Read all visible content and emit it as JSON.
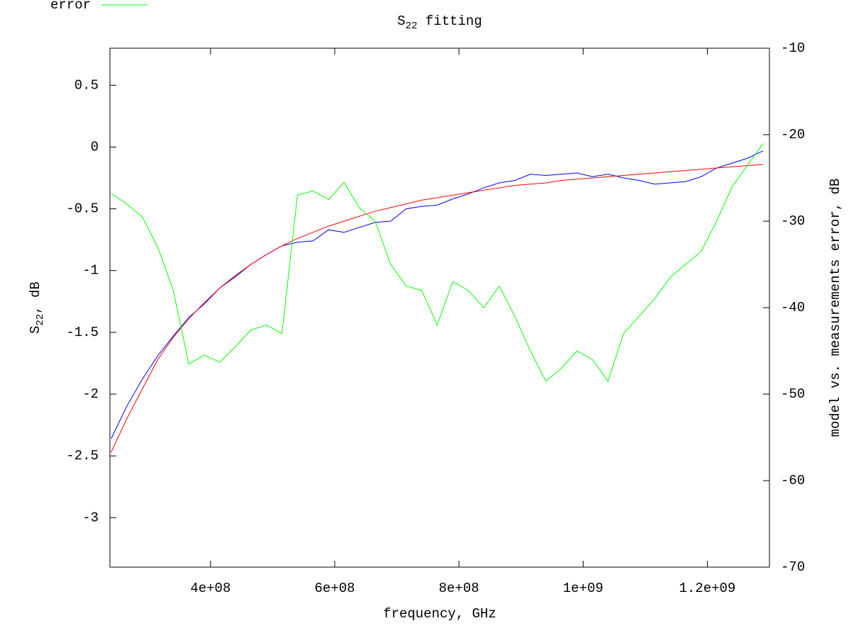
{
  "chart_data": {
    "type": "line",
    "title": {
      "base": "S",
      "sub": "22",
      "rest": " fitting"
    },
    "xlabel": "frequency, GHz",
    "ylabel": {
      "base": "S",
      "sub": "22",
      "rest": ", dB"
    },
    "y2label": "model vs. measurements error, dB",
    "legend": "top-left",
    "x": [
      240000000,
      265000000,
      290000000,
      315000000,
      340000000,
      365000000,
      390000000,
      415000000,
      440000000,
      465000000,
      490000000,
      515000000,
      540000000,
      565000000,
      590000000,
      615000000,
      640000000,
      665000000,
      690000000,
      715000000,
      740000000,
      765000000,
      790000000,
      815000000,
      840000000,
      865000000,
      890000000,
      915000000,
      940000000,
      965000000,
      990000000,
      1015000000,
      1040000000,
      1065000000,
      1090000000,
      1115000000,
      1140000000,
      1165000000,
      1190000000,
      1215000000,
      1240000000,
      1265000000,
      1290000000
    ],
    "series": [
      {
        "color": "#0000ff",
        "values": [
          -2.36,
          -2.1,
          -1.88,
          -1.69,
          -1.53,
          -1.38,
          -1.27,
          -1.14,
          -1.05,
          -0.95,
          -0.87,
          -0.8,
          -0.77,
          -0.76,
          -0.67,
          -0.69,
          -0.65,
          -0.61,
          -0.6,
          -0.5,
          -0.48,
          -0.47,
          -0.42,
          -0.38,
          -0.33,
          -0.29,
          -0.27,
          -0.22,
          -0.23,
          -0.22,
          -0.21,
          -0.24,
          -0.22,
          -0.25,
          -0.27,
          -0.3,
          -0.29,
          -0.28,
          -0.24,
          -0.17,
          -0.13,
          -0.09,
          -0.03
        ]
      },
      {
        "color": "#ff0000",
        "values": [
          -2.47,
          -2.2,
          -1.96,
          -1.72,
          -1.54,
          -1.39,
          -1.26,
          -1.14,
          -1.04,
          -0.95,
          -0.87,
          -0.8,
          -0.74,
          -0.69,
          -0.64,
          -0.6,
          -0.56,
          -0.52,
          -0.49,
          -0.46,
          -0.43,
          -0.41,
          -0.39,
          -0.37,
          -0.35,
          -0.33,
          -0.31,
          -0.3,
          -0.29,
          -0.27,
          -0.26,
          -0.25,
          -0.24,
          -0.23,
          -0.22,
          -0.21,
          -0.2,
          -0.19,
          -0.18,
          -0.17,
          -0.16,
          -0.15,
          -0.14
        ]
      },
      {
        "name": "error",
        "color": "#00ff00",
        "axis": "y2",
        "values": [
          -26.8,
          -28,
          -29.5,
          -33,
          -38,
          -46.5,
          -45.5,
          -46.3,
          -44.5,
          -42.6,
          -42,
          -43,
          -27,
          -26.5,
          -27.5,
          -25.5,
          -28.5,
          -30,
          -35,
          -37.5,
          -38,
          -42,
          -37,
          -38,
          -40,
          -37.5,
          -41,
          -45,
          -48.5,
          -47,
          -45,
          -46,
          -48.5,
          -43,
          -41,
          -39,
          -36.5,
          -35,
          -33.5,
          -30,
          -26,
          -23.5,
          -21
        ]
      }
    ],
    "xlim": [
      238000000,
      1300000000
    ],
    "xticks": [
      {
        "value": 400000000,
        "label": "4e+08"
      },
      {
        "value": 600000000,
        "label": "6e+08"
      },
      {
        "value": 800000000,
        "label": "8e+08"
      },
      {
        "value": 1000000000,
        "label": "1e+09"
      },
      {
        "value": 1200000000,
        "label": "1.2e+09"
      }
    ],
    "ylim": [
      -3.4,
      0.8
    ],
    "yticks": [
      -3,
      -2.5,
      -2,
      -1.5,
      -1,
      -0.5,
      0,
      0.5
    ],
    "y2lim": [
      -70,
      -10
    ],
    "y2ticks": [
      -70,
      -60,
      -50,
      -40,
      -30,
      -20,
      -10
    ],
    "y2color": "#00ff00"
  }
}
